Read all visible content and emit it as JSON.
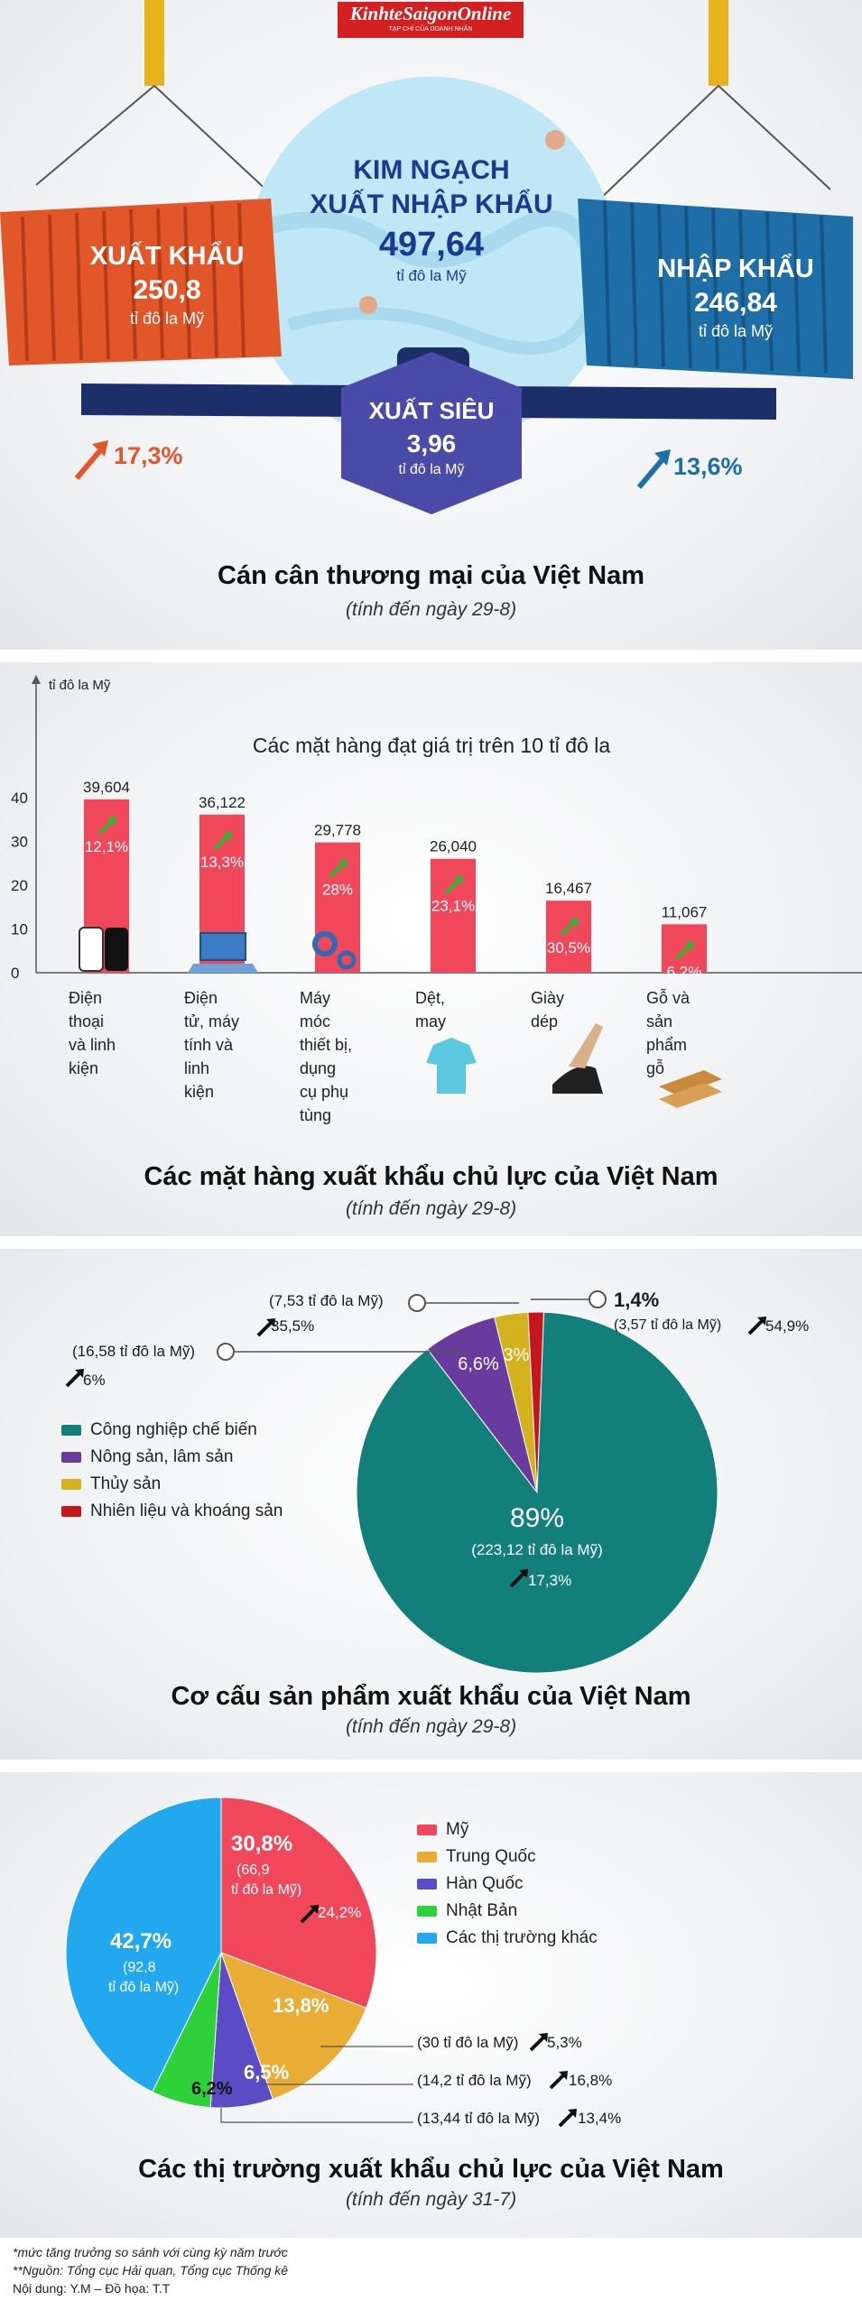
{
  "logo": {
    "text": "KinhteSaigonOnline",
    "sub": "TẠP CHÍ CỦA DOANH NHÂN"
  },
  "balance": {
    "center_title_1": "KIM NGẠCH",
    "center_title_2": "XUẤT NHẬP KHẨU",
    "total_value": "497,64",
    "total_unit": "tỉ đô la Mỹ",
    "export_label": "XUẤT KHẨU",
    "export_value": "250,8",
    "export_unit": "tỉ đô la Mỹ",
    "import_label": "NHẬP KHẨU",
    "import_value": "246,84",
    "import_unit": "tỉ đô la Mỹ",
    "surplus_label": "XUẤT SIÊU",
    "surplus_value": "3,96",
    "surplus_unit": "tỉ đô la Mỹ",
    "export_growth": "17,3%",
    "import_growth": "13,6%",
    "title": "Cán cân thương mại của Việt Nam",
    "subtitle": "(tính đến ngày 29-8)",
    "colors": {
      "export": "#e2572a",
      "import": "#1e6fa8",
      "center": "#bfe7f6",
      "surplus": "#4a4aa8"
    }
  },
  "bar_section": {
    "title": "Các mặt hàng xuất khẩu chủ lực của Việt Nam",
    "subtitle": "(tính đến ngày 29-8)",
    "icons": [
      "phone-icon",
      "laptop-icon",
      "gears-icon",
      "shirt-icon",
      "shoe-icon",
      "wood-planks-icon"
    ]
  },
  "pie_section": {
    "title": "Cơ cấu sản phẩm xuất khẩu của Việt Nam",
    "subtitle": "(tính đến ngày 29-8)",
    "callout_fuel_pct": "1,4%",
    "callout_fuel_value": "(3,57 tỉ đô la Mỹ)",
    "callout_fuel_growth": "54,9%",
    "callout_fish_value": "(7,53 tỉ đô la Mỹ)",
    "callout_fish_growth": "35,5%",
    "callout_agri_value": "(16,58 tỉ đô la Mỹ)",
    "callout_agri_growth": "6%",
    "main_pct": "89%",
    "main_value": "(223,12 tỉ đô la Mỹ)",
    "main_growth": "17,3%"
  },
  "market_section": {
    "title": "Các thị trường xuất khẩu chủ lực của Việt Nam",
    "subtitle": "(tính đến ngày 31-7)",
    "us_pct": "30,8%",
    "us_value_1": "(66,9",
    "us_value_2": "tỉ đô la Mỹ)",
    "us_growth": "24,2%",
    "other_pct": "42,7%",
    "other_value_1": "(92,8",
    "other_value_2": "tỉ đô la Mỹ)",
    "cn_pct": "13,8%",
    "kr_pct": "6,5%",
    "jp_pct": "6,2%",
    "cn_note": "(30 tỉ đô la Mỹ)",
    "cn_growth": "5,3%",
    "kr_note": "(14,2 tỉ đô la Mỹ)",
    "kr_growth": "16,8%",
    "jp_note": "(13,44 tỉ đô la Mỹ)",
    "jp_growth": "13,4%"
  },
  "footer": {
    "line1": "*mức tăng trưởng so sánh với cùng kỳ năm trước",
    "line2": "**Nguồn: Tổng cục Hải quan, Tổng cục Thống kê",
    "line3": "Nội dung: Y.M – Đồ họa: T.T"
  },
  "chart_data": [
    {
      "type": "bar",
      "title": "Các mặt hàng đạt giá trị trên 10 tỉ đô la",
      "ylabel": "tỉ đô la Mỹ",
      "ylim": [
        0,
        40
      ],
      "yticks": [
        0,
        10,
        20,
        30,
        40
      ],
      "categories": [
        [
          "Điện",
          "thoại",
          "và linh",
          "kiện"
        ],
        [
          "Điện",
          "tử, máy",
          "tính và",
          "linh",
          "kiện"
        ],
        [
          "Máy",
          "móc",
          "thiết bị,",
          "dụng",
          "cụ phụ",
          "tùng"
        ],
        [
          "Dệt,",
          "may"
        ],
        [
          "Giày",
          "dép"
        ],
        [
          "Gỗ và",
          "sản",
          "phẩm",
          "gỗ"
        ]
      ],
      "values": [
        39.604,
        36.122,
        29.778,
        26.04,
        16.467,
        11.067
      ],
      "value_labels": [
        "39,604",
        "36,122",
        "29,778",
        "26,040",
        "16,467",
        "11,067"
      ],
      "growth": [
        "12,1%",
        "13,3%",
        "28%",
        "23,1%",
        "30,5%",
        "6,2%"
      ],
      "color": "#f0475a"
    },
    {
      "type": "pie",
      "categories": [
        "Công nghiệp chế biến",
        "Nông sản, lâm sản",
        "Thủy sản",
        "Nhiên liệu và khoáng sản"
      ],
      "values": [
        89,
        6.6,
        3,
        1.4
      ],
      "labels": [
        "89%",
        "6,6%",
        "3%",
        "1,4%"
      ],
      "colors": [
        "#137f7b",
        "#6a3b9e",
        "#d4b21d",
        "#c4161c"
      ],
      "legend": "left"
    },
    {
      "type": "pie",
      "categories": [
        "Mỹ",
        "Trung Quốc",
        "Hàn Quốc",
        "Nhật Bản",
        "Các thị trường khác"
      ],
      "values": [
        30.8,
        13.8,
        6.5,
        6.2,
        42.7
      ],
      "colors": [
        "#f0475a",
        "#e9ad36",
        "#5b4bc4",
        "#2fd13a",
        "#21a8ee"
      ],
      "legend": "right"
    }
  ]
}
